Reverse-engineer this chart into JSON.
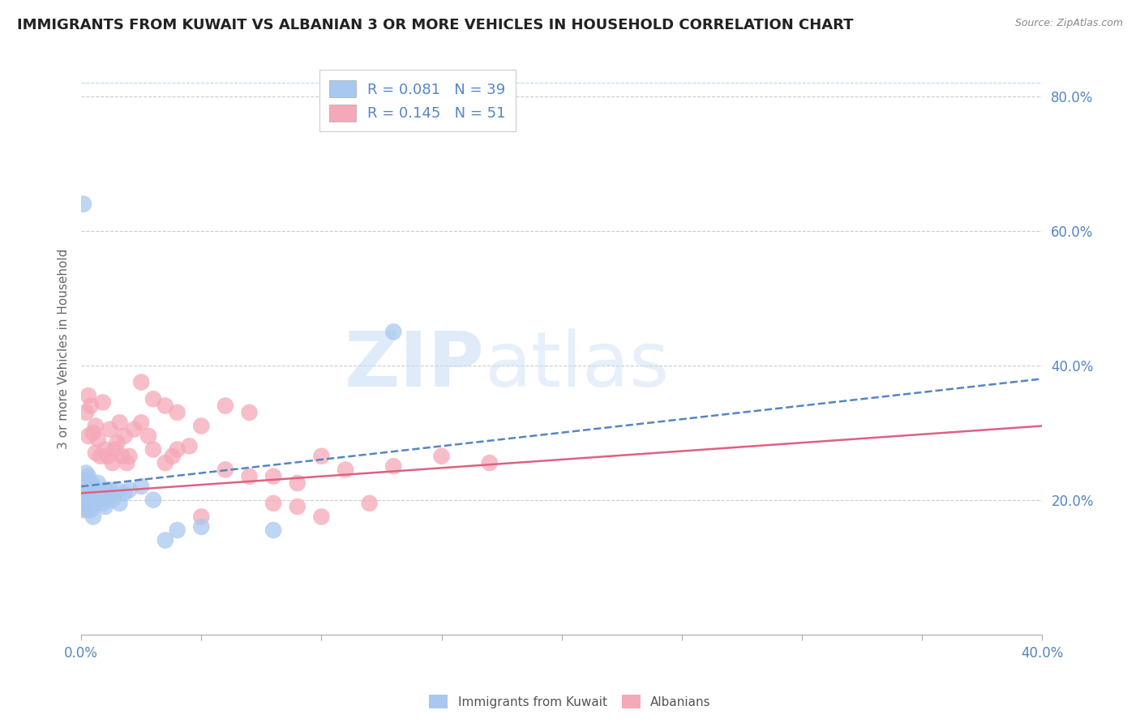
{
  "title": "IMMIGRANTS FROM KUWAIT VS ALBANIAN 3 OR MORE VEHICLES IN HOUSEHOLD CORRELATION CHART",
  "source": "Source: ZipAtlas.com",
  "ylabel": "3 or more Vehicles in Household",
  "xlim": [
    0.0,
    0.4
  ],
  "ylim": [
    0.0,
    0.85
  ],
  "right_yticks": [
    0.2,
    0.4,
    0.6,
    0.8
  ],
  "right_yticklabels": [
    "20.0%",
    "40.0%",
    "60.0%",
    "80.0%"
  ],
  "legend_r1": "R = 0.081",
  "legend_n1": "N = 39",
  "legend_r2": "R = 0.145",
  "legend_n2": "N = 51",
  "color_blue": "#A8C8F0",
  "color_pink": "#F5A8B8",
  "color_blue_line": "#5585C5",
  "color_pink_line": "#E06080",
  "blue_scatter_x": [
    0.001,
    0.001,
    0.001,
    0.002,
    0.002,
    0.002,
    0.002,
    0.003,
    0.003,
    0.003,
    0.003,
    0.004,
    0.004,
    0.004,
    0.005,
    0.005,
    0.005,
    0.006,
    0.006,
    0.007,
    0.007,
    0.008,
    0.009,
    0.01,
    0.01,
    0.011,
    0.012,
    0.013,
    0.015,
    0.016,
    0.018,
    0.02,
    0.025,
    0.03,
    0.035,
    0.04,
    0.05,
    0.08,
    0.13
  ],
  "blue_scatter_y": [
    0.64,
    0.23,
    0.195,
    0.24,
    0.21,
    0.225,
    0.195,
    0.215,
    0.235,
    0.205,
    0.185,
    0.225,
    0.205,
    0.185,
    0.22,
    0.2,
    0.175,
    0.215,
    0.195,
    0.225,
    0.2,
    0.21,
    0.195,
    0.215,
    0.19,
    0.205,
    0.215,
    0.2,
    0.215,
    0.195,
    0.21,
    0.215,
    0.22,
    0.2,
    0.14,
    0.155,
    0.16,
    0.155,
    0.45
  ],
  "pink_scatter_x": [
    0.001,
    0.002,
    0.003,
    0.003,
    0.004,
    0.005,
    0.006,
    0.006,
    0.007,
    0.008,
    0.009,
    0.01,
    0.011,
    0.012,
    0.013,
    0.014,
    0.015,
    0.016,
    0.017,
    0.018,
    0.019,
    0.02,
    0.022,
    0.025,
    0.028,
    0.03,
    0.035,
    0.038,
    0.04,
    0.045,
    0.05,
    0.06,
    0.07,
    0.08,
    0.09,
    0.1,
    0.11,
    0.13,
    0.15,
    0.17,
    0.08,
    0.09,
    0.1,
    0.12,
    0.025,
    0.03,
    0.035,
    0.04,
    0.05,
    0.06,
    0.07
  ],
  "pink_scatter_y": [
    0.185,
    0.33,
    0.355,
    0.295,
    0.34,
    0.3,
    0.27,
    0.31,
    0.29,
    0.265,
    0.345,
    0.275,
    0.265,
    0.305,
    0.255,
    0.275,
    0.285,
    0.315,
    0.265,
    0.295,
    0.255,
    0.265,
    0.305,
    0.315,
    0.295,
    0.275,
    0.255,
    0.265,
    0.275,
    0.28,
    0.175,
    0.245,
    0.235,
    0.235,
    0.225,
    0.265,
    0.245,
    0.25,
    0.265,
    0.255,
    0.195,
    0.19,
    0.175,
    0.195,
    0.375,
    0.35,
    0.34,
    0.33,
    0.31,
    0.34,
    0.33
  ],
  "blue_trendline_x": [
    0.0,
    0.4
  ],
  "blue_trendline_y": [
    0.22,
    0.38
  ],
  "pink_trendline_x": [
    0.0,
    0.4
  ],
  "pink_trendline_y": [
    0.21,
    0.31
  ]
}
